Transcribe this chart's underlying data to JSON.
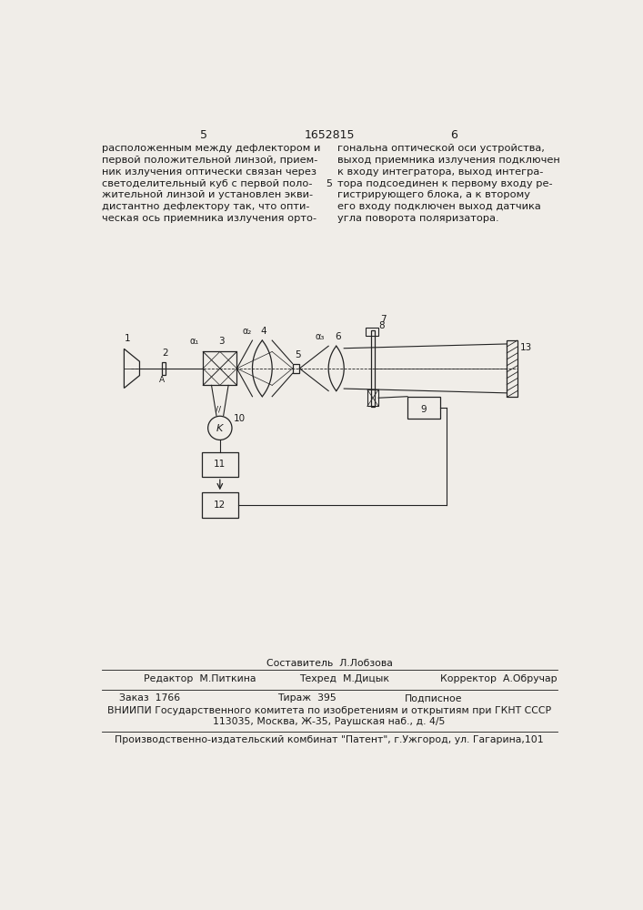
{
  "background": "#f0ede8",
  "page_color": "#f0ede8",
  "text_color": "#1a1a1a",
  "title_number": "1652815",
  "page_left": "5",
  "page_right": "6",
  "left_text": "расположенным между дефлектором и\nпервой положительной линзой, прием-\nник излучения оптически связан через\nсветоделительный куб с первой поло-\nжительной линзой и установлен экви-\nдистантно дефлектору так, что опти-\nческая ось приемника излучения орто-",
  "right_text": "гональна оптической оси устройства,\nвыход приемника излучения подключен\nк входу интегратора, выход интегра-\nтора подсоединен к первому входу ре-\nгистрирующего блока, а к второму\nего входу подключен выход датчика\nугла поворота поляризатора.",
  "footer_editor": "Редактор  М.Питкина",
  "footer_tech": "Техред  М.Дицык",
  "footer_corrector": "Корректор  А.Обручар",
  "footer_composer": "Составитель  Л.Лобзова",
  "footer_order": "Заказ  1766",
  "footer_circulation": "Тираж  395",
  "footer_subscription": "Подписное",
  "footer_vniip": "ВНИИПИ Государственного комитета по изобретениям и открытиям при ГКНТ СССР",
  "footer_address": "113035, Москва, Ж-35, Раушская наб., д. 4/5",
  "footer_publisher": "Производственно-издательский комбинат \"Патент\", г.Ужгород, ул. Гагарина,101"
}
